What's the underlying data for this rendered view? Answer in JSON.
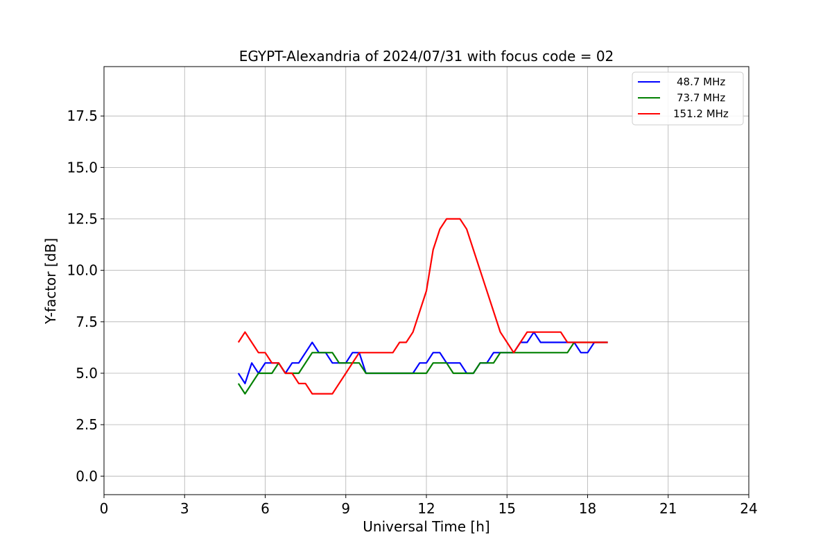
{
  "chart_data": {
    "type": "line",
    "title": "EGYPT-Alexandria of 2024/07/31 with focus code = 02",
    "xlabel": "Universal Time [h]",
    "ylabel": "Y-factor [dB]",
    "xlim": [
      0,
      24
    ],
    "ylim": [
      -0.9,
      19.9
    ],
    "xticks": [
      "0",
      "3",
      "6",
      "9",
      "12",
      "15",
      "18",
      "21",
      "24"
    ],
    "xtick_values": [
      0,
      3,
      6,
      9,
      12,
      15,
      18,
      21,
      24
    ],
    "yticks": [
      "0.0",
      "2.5",
      "5.0",
      "7.5",
      "10.0",
      "12.5",
      "15.0",
      "17.5"
    ],
    "ytick_values": [
      0,
      2.5,
      5,
      7.5,
      10,
      12.5,
      15,
      17.5
    ],
    "grid": true,
    "legend_position": "top-right",
    "series": [
      {
        "name": "48.7 MHz",
        "color": "#0000ff",
        "x": [
          5.0,
          5.25,
          5.5,
          5.75,
          6.0,
          6.25,
          6.5,
          6.75,
          7.0,
          7.25,
          7.5,
          7.75,
          8.0,
          8.25,
          8.5,
          8.75,
          9.0,
          9.25,
          9.5,
          9.75,
          10.0,
          10.25,
          10.5,
          10.75,
          11.0,
          11.25,
          11.5,
          11.75,
          12.0,
          12.25,
          12.5,
          12.75,
          13.0,
          13.25,
          13.5,
          13.75,
          14.0,
          14.25,
          14.5,
          14.75,
          15.0,
          15.25,
          15.5,
          15.75,
          16.0,
          16.25,
          16.5,
          16.75,
          17.0,
          17.25,
          17.5,
          17.75,
          18.0,
          18.25,
          18.5,
          18.75
        ],
        "y": [
          5.0,
          4.5,
          5.5,
          5.0,
          5.5,
          5.5,
          5.5,
          5.0,
          5.5,
          5.5,
          6.0,
          6.5,
          6.0,
          6.0,
          5.5,
          5.5,
          5.5,
          6.0,
          6.0,
          5.0,
          5.0,
          5.0,
          5.0,
          5.0,
          5.0,
          5.0,
          5.0,
          5.5,
          5.5,
          6.0,
          6.0,
          5.5,
          5.5,
          5.5,
          5.0,
          5.0,
          5.5,
          5.5,
          6.0,
          6.0,
          6.0,
          6.0,
          6.5,
          6.5,
          7.0,
          6.5,
          6.5,
          6.5,
          6.5,
          6.5,
          6.5,
          6.0,
          6.0,
          6.5,
          6.5,
          6.5
        ]
      },
      {
        "name": "73.7 MHz",
        "color": "#008000",
        "x": [
          5.0,
          5.25,
          5.5,
          5.75,
          6.0,
          6.25,
          6.5,
          6.75,
          7.0,
          7.25,
          7.5,
          7.75,
          8.0,
          8.25,
          8.5,
          8.75,
          9.0,
          9.25,
          9.5,
          9.75,
          10.0,
          10.25,
          10.5,
          10.75,
          11.0,
          11.25,
          11.5,
          11.75,
          12.0,
          12.25,
          12.5,
          12.75,
          13.0,
          13.25,
          13.5,
          13.75,
          14.0,
          14.25,
          14.5,
          14.75,
          15.0,
          15.25,
          15.5,
          15.75,
          16.0,
          16.25,
          16.5,
          16.75,
          17.0,
          17.25,
          17.5,
          17.75,
          18.0,
          18.25,
          18.5,
          18.75
        ],
        "y": [
          4.5,
          4.0,
          4.5,
          5.0,
          5.0,
          5.0,
          5.5,
          5.0,
          5.0,
          5.0,
          5.5,
          6.0,
          6.0,
          6.0,
          6.0,
          5.5,
          5.5,
          5.5,
          5.5,
          5.0,
          5.0,
          5.0,
          5.0,
          5.0,
          5.0,
          5.0,
          5.0,
          5.0,
          5.0,
          5.5,
          5.5,
          5.5,
          5.0,
          5.0,
          5.0,
          5.0,
          5.5,
          5.5,
          5.5,
          6.0,
          6.0,
          6.0,
          6.0,
          6.0,
          6.0,
          6.0,
          6.0,
          6.0,
          6.0,
          6.0,
          6.5,
          6.5,
          6.5,
          6.5,
          6.5,
          6.5
        ]
      },
      {
        "name": "151.2 MHz",
        "color": "#ff0000",
        "x": [
          5.0,
          5.25,
          5.5,
          5.75,
          6.0,
          6.25,
          6.5,
          6.75,
          7.0,
          7.25,
          7.5,
          7.75,
          8.0,
          8.25,
          8.5,
          8.75,
          9.0,
          9.25,
          9.5,
          9.75,
          10.0,
          10.25,
          10.5,
          10.75,
          11.0,
          11.25,
          11.5,
          11.75,
          12.0,
          12.25,
          12.5,
          12.75,
          13.0,
          13.25,
          13.5,
          13.75,
          14.0,
          14.25,
          14.5,
          14.75,
          15.0,
          15.25,
          15.5,
          15.75,
          16.0,
          16.25,
          16.5,
          16.75,
          17.0,
          17.25,
          17.5,
          17.75,
          18.0,
          18.25,
          18.5,
          18.75
        ],
        "y": [
          6.5,
          7.0,
          6.5,
          6.0,
          6.0,
          5.5,
          5.5,
          5.0,
          5.0,
          4.5,
          4.5,
          4.0,
          4.0,
          4.0,
          4.0,
          4.5,
          5.0,
          5.5,
          6.0,
          6.0,
          6.0,
          6.0,
          6.0,
          6.0,
          6.5,
          6.5,
          7.0,
          8.0,
          9.0,
          11.0,
          12.0,
          12.5,
          12.5,
          12.5,
          12.0,
          11.0,
          10.0,
          9.0,
          8.0,
          7.0,
          6.5,
          6.0,
          6.5,
          7.0,
          7.0,
          7.0,
          7.0,
          7.0,
          7.0,
          6.5,
          6.5,
          6.5,
          6.5,
          6.5,
          6.5,
          6.5
        ]
      }
    ]
  }
}
